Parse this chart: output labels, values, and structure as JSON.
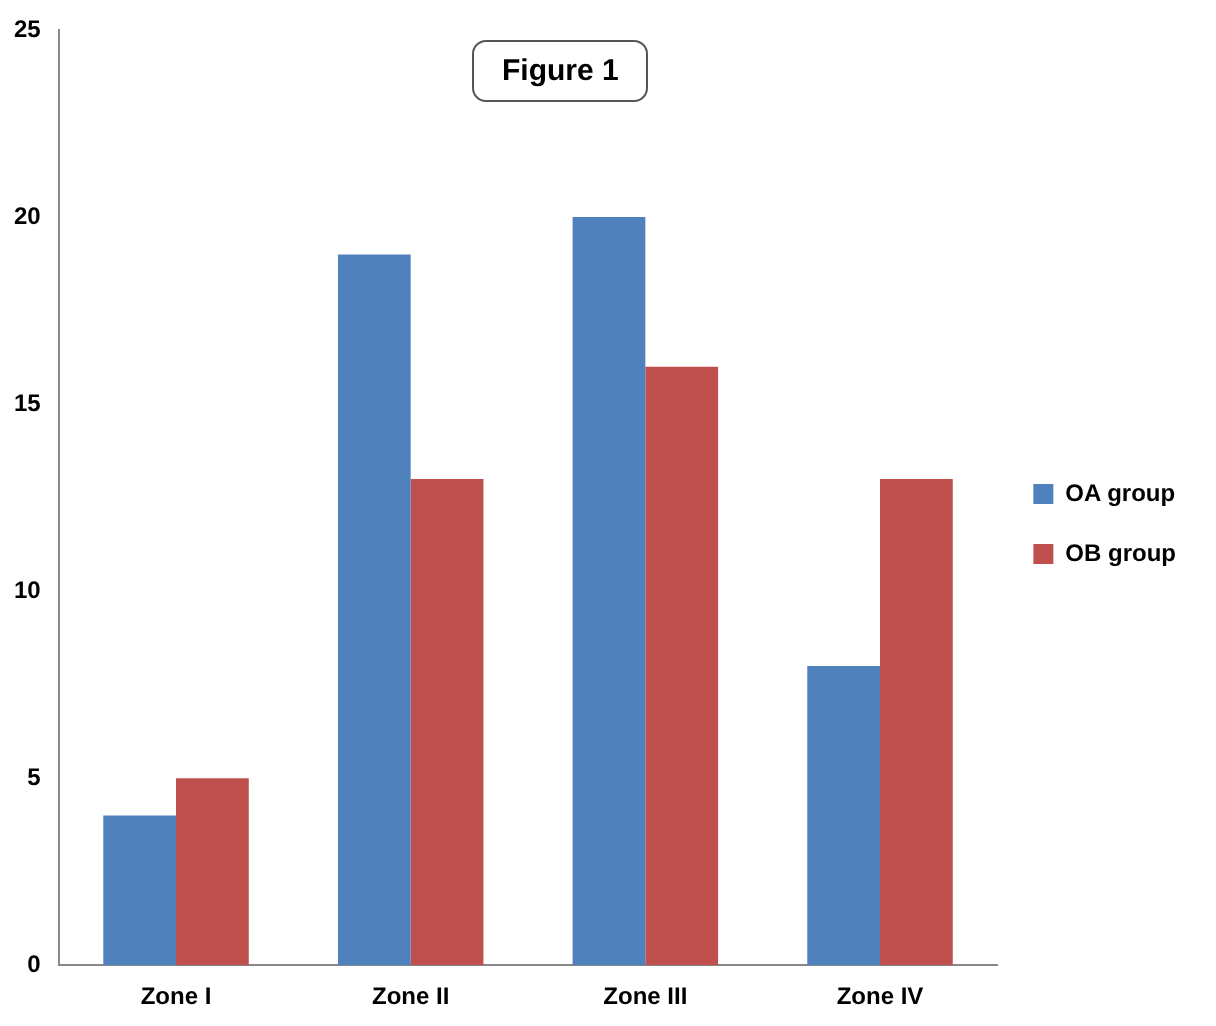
{
  "chart_data": {
    "type": "bar",
    "title": "Figure 1",
    "categories": [
      "Zone I",
      "Zone II",
      "Zone III",
      "Zone IV"
    ],
    "series": [
      {
        "name": "OA group",
        "color": "#4f81bd",
        "values": [
          4,
          19,
          20,
          8
        ]
      },
      {
        "name": "OB group",
        "color": "#c0504d",
        "values": [
          5,
          13,
          16,
          13
        ]
      }
    ],
    "ylim": [
      0,
      25
    ],
    "yticks": [
      0,
      5,
      10,
      15,
      20,
      25
    ],
    "grid": false,
    "legend": "right"
  }
}
